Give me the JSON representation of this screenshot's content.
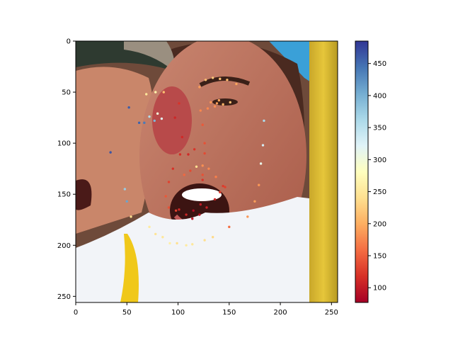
{
  "chart_data": {
    "type": "scatter",
    "title": "",
    "xlabel": "",
    "ylabel": "",
    "background": "photo of two people cheering; face of a young woman with open mouth in center",
    "xlim": [
      0,
      256
    ],
    "ylim": [
      256,
      0
    ],
    "x_ticks": [
      0,
      50,
      100,
      150,
      200,
      250
    ],
    "y_ticks": [
      0,
      50,
      100,
      150,
      200,
      250
    ],
    "colorbar": {
      "colormap": "RdYlBu",
      "vmin": 77,
      "vmax": 485,
      "ticks": [
        100,
        150,
        200,
        250,
        300,
        350,
        400,
        450
      ]
    },
    "points": [
      {
        "x": 69,
        "y": 52,
        "v": 250
      },
      {
        "x": 78,
        "y": 50,
        "v": 265
      },
      {
        "x": 86,
        "y": 50,
        "v": 215
      },
      {
        "x": 101,
        "y": 61,
        "v": 120
      },
      {
        "x": 97,
        "y": 75,
        "v": 110
      },
      {
        "x": 104,
        "y": 94,
        "v": 112
      },
      {
        "x": 102,
        "y": 111,
        "v": 115
      },
      {
        "x": 95,
        "y": 125,
        "v": 118
      },
      {
        "x": 91,
        "y": 138,
        "v": 130
      },
      {
        "x": 88,
        "y": 152,
        "v": 145
      },
      {
        "x": 91,
        "y": 163,
        "v": 140
      },
      {
        "x": 98,
        "y": 166,
        "v": 130
      },
      {
        "x": 108,
        "y": 170,
        "v": 110
      },
      {
        "x": 114,
        "y": 174,
        "v": 95
      },
      {
        "x": 121,
        "y": 170,
        "v": 95
      },
      {
        "x": 128,
        "y": 163,
        "v": 105
      },
      {
        "x": 136,
        "y": 155,
        "v": 110
      },
      {
        "x": 141,
        "y": 148,
        "v": 125
      },
      {
        "x": 121,
        "y": 45,
        "v": 190
      },
      {
        "x": 127,
        "y": 38,
        "v": 215
      },
      {
        "x": 134,
        "y": 36,
        "v": 220
      },
      {
        "x": 141,
        "y": 37,
        "v": 215
      },
      {
        "x": 148,
        "y": 38,
        "v": 210
      },
      {
        "x": 157,
        "y": 42,
        "v": 195
      },
      {
        "x": 122,
        "y": 68,
        "v": 175
      },
      {
        "x": 129,
        "y": 66,
        "v": 175
      },
      {
        "x": 136,
        "y": 64,
        "v": 180
      },
      {
        "x": 140,
        "y": 58,
        "v": 195
      },
      {
        "x": 144,
        "y": 62,
        "v": 205
      },
      {
        "x": 151,
        "y": 60,
        "v": 215
      },
      {
        "x": 132,
        "y": 60,
        "v": 185
      },
      {
        "x": 138,
        "y": 61,
        "v": 190
      },
      {
        "x": 124,
        "y": 82,
        "v": 145
      },
      {
        "x": 126,
        "y": 100,
        "v": 140
      },
      {
        "x": 116,
        "y": 106,
        "v": 120
      },
      {
        "x": 110,
        "y": 111,
        "v": 112
      },
      {
        "x": 126,
        "y": 110,
        "v": 135
      },
      {
        "x": 112,
        "y": 127,
        "v": 135
      },
      {
        "x": 106,
        "y": 131,
        "v": 155
      },
      {
        "x": 118,
        "y": 123,
        "v": 240
      },
      {
        "x": 124,
        "y": 122,
        "v": 180
      },
      {
        "x": 130,
        "y": 125,
        "v": 175
      },
      {
        "x": 137,
        "y": 133,
        "v": 170
      },
      {
        "x": 124,
        "y": 131,
        "v": 140
      },
      {
        "x": 124,
        "y": 136,
        "v": 120
      },
      {
        "x": 115,
        "y": 166,
        "v": 88
      },
      {
        "x": 122,
        "y": 160,
        "v": 100
      },
      {
        "x": 101,
        "y": 165,
        "v": 110
      },
      {
        "x": 144,
        "y": 142,
        "v": 125
      },
      {
        "x": 146,
        "y": 143,
        "v": 130
      },
      {
        "x": 150,
        "y": 182,
        "v": 160
      },
      {
        "x": 168,
        "y": 172,
        "v": 185
      },
      {
        "x": 175,
        "y": 157,
        "v": 190
      },
      {
        "x": 179,
        "y": 141,
        "v": 185
      },
      {
        "x": 181,
        "y": 120,
        "v": 310
      },
      {
        "x": 183,
        "y": 102,
        "v": 330
      },
      {
        "x": 184,
        "y": 78,
        "v": 360
      },
      {
        "x": 52,
        "y": 65,
        "v": 460
      },
      {
        "x": 62,
        "y": 80,
        "v": 455
      },
      {
        "x": 67,
        "y": 80,
        "v": 440
      },
      {
        "x": 34,
        "y": 109,
        "v": 465
      },
      {
        "x": 72,
        "y": 74,
        "v": 355
      },
      {
        "x": 77,
        "y": 78,
        "v": 395
      },
      {
        "x": 80,
        "y": 71,
        "v": 300
      },
      {
        "x": 84,
        "y": 76,
        "v": 320
      },
      {
        "x": 48,
        "y": 145,
        "v": 375
      },
      {
        "x": 50,
        "y": 157,
        "v": 410
      },
      {
        "x": 54,
        "y": 172,
        "v": 240
      },
      {
        "x": 72,
        "y": 182,
        "v": 255
      },
      {
        "x": 78,
        "y": 189,
        "v": 245
      },
      {
        "x": 85,
        "y": 192,
        "v": 250
      },
      {
        "x": 92,
        "y": 198,
        "v": 260
      },
      {
        "x": 99,
        "y": 198,
        "v": 240
      },
      {
        "x": 108,
        "y": 200,
        "v": 255
      },
      {
        "x": 114,
        "y": 199,
        "v": 250
      },
      {
        "x": 126,
        "y": 195,
        "v": 240
      },
      {
        "x": 134,
        "y": 192,
        "v": 235
      }
    ]
  }
}
